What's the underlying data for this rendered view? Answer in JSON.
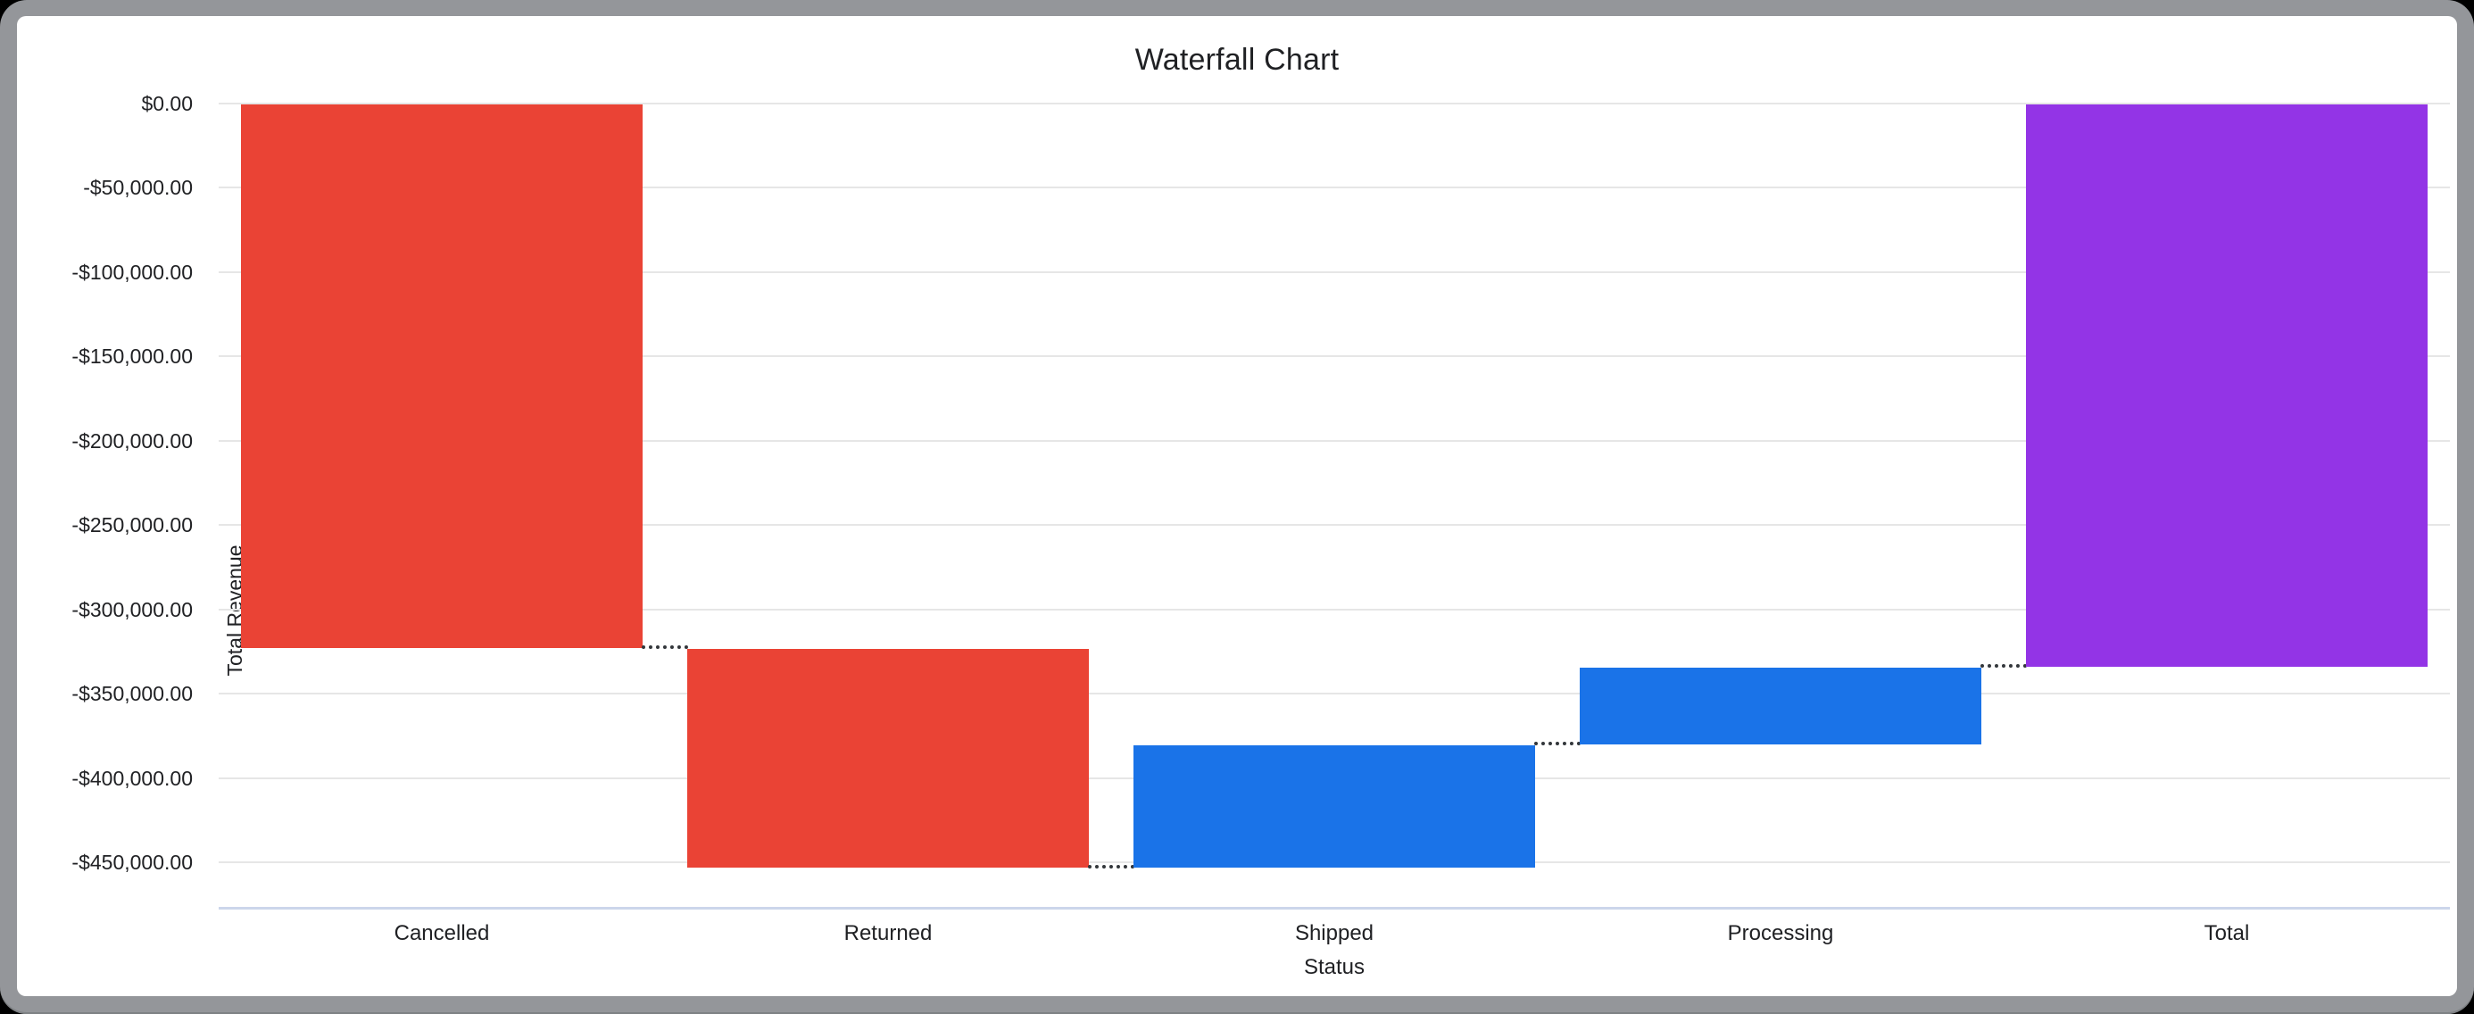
{
  "window": {
    "background_color": "#000000",
    "frame_color": "#94969a",
    "card_color": "#ffffff"
  },
  "chart_data": {
    "type": "bar",
    "subtype": "waterfall",
    "title": "Waterfall Chart",
    "xlabel": "Status",
    "ylabel": "Total Revenue",
    "categories": [
      "Cancelled",
      "Returned",
      "Shipped",
      "Processing",
      "Total"
    ],
    "bars": [
      {
        "label": "Cancelled",
        "start": 0,
        "end": -323200,
        "delta": -323200,
        "kind": "decrease",
        "color": "#EA4335"
      },
      {
        "label": "Returned",
        "start": -323200,
        "end": -453400,
        "delta": -130200,
        "kind": "decrease",
        "color": "#EA4335"
      },
      {
        "label": "Shipped",
        "start": -453400,
        "end": -380100,
        "delta": 73300,
        "kind": "increase",
        "color": "#1A73E8"
      },
      {
        "label": "Processing",
        "start": -380100,
        "end": -334300,
        "delta": 45800,
        "kind": "increase",
        "color": "#1A73E8"
      },
      {
        "label": "Total",
        "start": 0,
        "end": -334300,
        "delta": -334300,
        "kind": "total",
        "color": "#9334E6"
      }
    ],
    "y_ticks": [
      {
        "value": 0,
        "label": "$0.00"
      },
      {
        "value": -50000,
        "label": "-$50,000.00"
      },
      {
        "value": -100000,
        "label": "-$100,000.00"
      },
      {
        "value": -150000,
        "label": "-$150,000.00"
      },
      {
        "value": -200000,
        "label": "-$200,000.00"
      },
      {
        "value": -250000,
        "label": "-$250,000.00"
      },
      {
        "value": -300000,
        "label": "-$300,000.00"
      },
      {
        "value": -350000,
        "label": "-$350,000.00"
      },
      {
        "value": -400000,
        "label": "-$400,000.00"
      },
      {
        "value": -450000,
        "label": "-$450,000.00"
      }
    ],
    "ylim": [
      -477000,
      0
    ],
    "grid": true,
    "gridline_color": "#e6e6e6",
    "baseline_color": "#ccd6eb",
    "connector_style": "dotted",
    "connector_color": "#33373b",
    "legend": "none"
  }
}
